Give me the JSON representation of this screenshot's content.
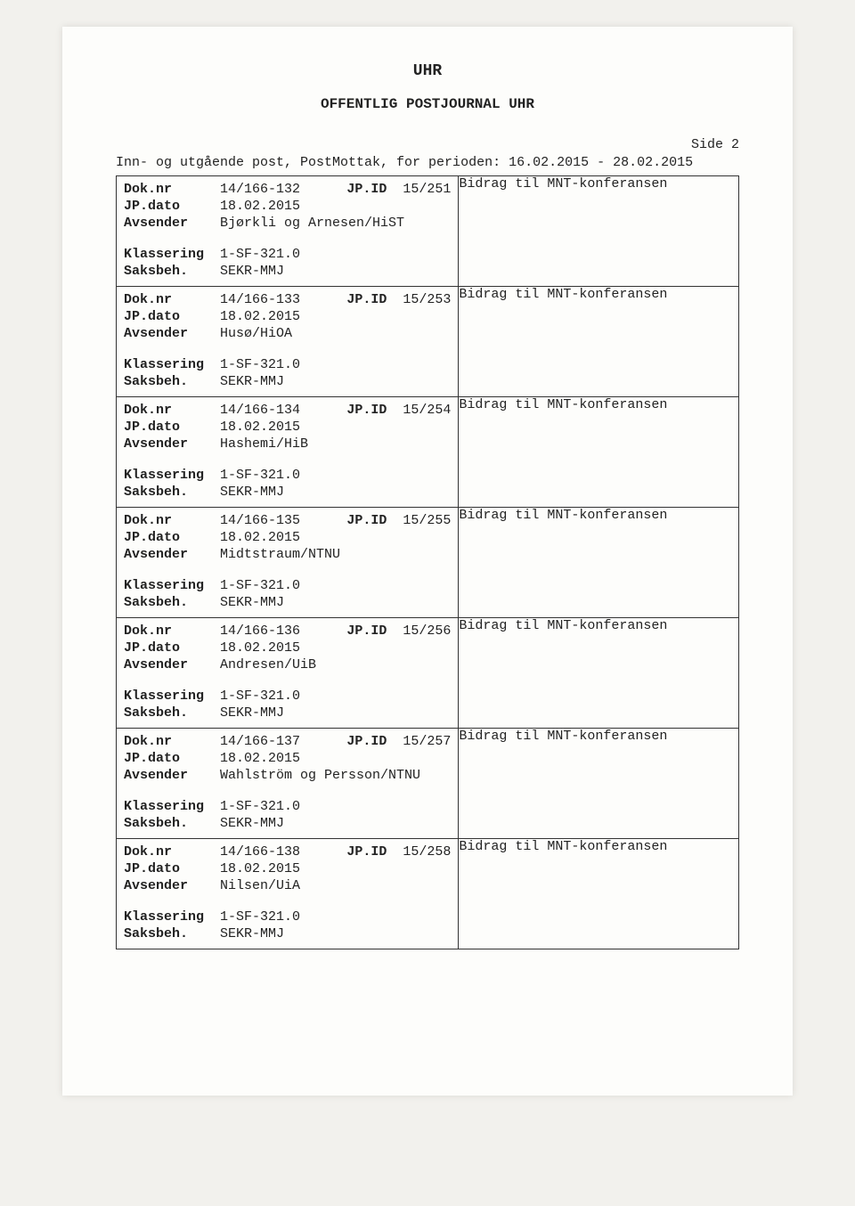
{
  "header": {
    "title1": "UHR",
    "title2": "OFFENTLIG POSTJOURNAL UHR",
    "side": "Side 2",
    "period": "Inn- og utgående post, PostMottak, for perioden: 16.02.2015 - 28.02.2015"
  },
  "labels": {
    "doknr": "Dok.nr",
    "jpid": "JP.ID",
    "jpdato": "JP.dato",
    "avsender": "Avsender",
    "klassering": "Klassering",
    "saksbeh": "Saksbeh."
  },
  "entries": [
    {
      "doknr": "14/166-132",
      "jpid": "15/251",
      "jpdato": "18.02.2015",
      "avsender": "Bjørkli og Arnesen/HiST",
      "klassering": "1-SF-321.0",
      "saksbeh": "SEKR-MMJ",
      "desc": "Bidrag til MNT-konferansen"
    },
    {
      "doknr": "14/166-133",
      "jpid": "15/253",
      "jpdato": "18.02.2015",
      "avsender": "Husø/HiOA",
      "klassering": "1-SF-321.0",
      "saksbeh": "SEKR-MMJ",
      "desc": "Bidrag til MNT-konferansen"
    },
    {
      "doknr": "14/166-134",
      "jpid": "15/254",
      "jpdato": "18.02.2015",
      "avsender": "Hashemi/HiB",
      "klassering": "1-SF-321.0",
      "saksbeh": "SEKR-MMJ",
      "desc": "Bidrag til MNT-konferansen"
    },
    {
      "doknr": "14/166-135",
      "jpid": "15/255",
      "jpdato": "18.02.2015",
      "avsender": "Midtstraum/NTNU",
      "klassering": "1-SF-321.0",
      "saksbeh": "SEKR-MMJ",
      "desc": "Bidrag til MNT-konferansen"
    },
    {
      "doknr": "14/166-136",
      "jpid": "15/256",
      "jpdato": "18.02.2015",
      "avsender": "Andresen/UiB",
      "klassering": "1-SF-321.0",
      "saksbeh": "SEKR-MMJ",
      "desc": "Bidrag til MNT-konferansen"
    },
    {
      "doknr": "14/166-137",
      "jpid": "15/257",
      "jpdato": "18.02.2015",
      "avsender": "Wahlström og Persson/NTNU",
      "klassering": "1-SF-321.0",
      "saksbeh": "SEKR-MMJ",
      "desc": "Bidrag til MNT-konferansen"
    },
    {
      "doknr": "14/166-138",
      "jpid": "15/258",
      "jpdato": "18.02.2015",
      "avsender": "Nilsen/UiA",
      "klassering": "1-SF-321.0",
      "saksbeh": "SEKR-MMJ",
      "desc": "Bidrag til MNT-konferansen"
    }
  ]
}
